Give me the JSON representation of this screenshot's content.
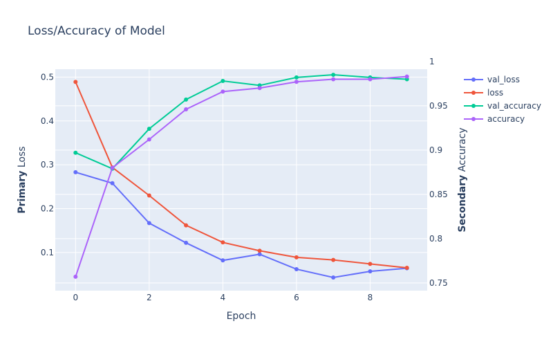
{
  "chart_data": {
    "type": "line",
    "title": "Loss/Accuracy of Model",
    "xlabel": "Epoch",
    "ylabel_primary": {
      "bold": "Primary",
      "rest": " Loss"
    },
    "ylabel_secondary": {
      "bold": "Secondary",
      "rest": " Accuracy"
    },
    "x": [
      0,
      1,
      2,
      3,
      4,
      5,
      6,
      7,
      8,
      9
    ],
    "x_ticks": [
      0,
      2,
      4,
      6,
      8
    ],
    "xlim": [
      -0.55,
      9.55
    ],
    "y_primary": {
      "ticks": [
        0.1,
        0.2,
        0.3,
        0.4,
        0.5
      ],
      "ylim": [
        0.013,
        0.518
      ]
    },
    "y_secondary": {
      "ticks": [
        0.75,
        0.8,
        0.85,
        0.9,
        0.95,
        1
      ],
      "ylim": [
        0.7413,
        0.9913
      ]
    },
    "legend_position": "right",
    "grid": true,
    "series": [
      {
        "name": "val_loss",
        "axis": "primary",
        "color": "#636efa",
        "values": [
          0.283,
          0.258,
          0.167,
          0.122,
          0.082,
          0.096,
          0.062,
          0.043,
          0.057,
          0.064
        ]
      },
      {
        "name": "loss",
        "axis": "primary",
        "color": "#ef553b",
        "values": [
          0.489,
          0.294,
          0.23,
          0.162,
          0.123,
          0.104,
          0.089,
          0.083,
          0.074,
          0.065
        ]
      },
      {
        "name": "val_accuracy",
        "axis": "secondary",
        "color": "#00cc96",
        "values": [
          0.897,
          0.879,
          0.924,
          0.957,
          0.978,
          0.973,
          0.982,
          0.985,
          0.982,
          0.98
        ]
      },
      {
        "name": "accuracy",
        "axis": "secondary",
        "color": "#ab63fa",
        "values": [
          0.757,
          0.88,
          0.912,
          0.946,
          0.966,
          0.97,
          0.977,
          0.98,
          0.98,
          0.983
        ]
      }
    ]
  }
}
